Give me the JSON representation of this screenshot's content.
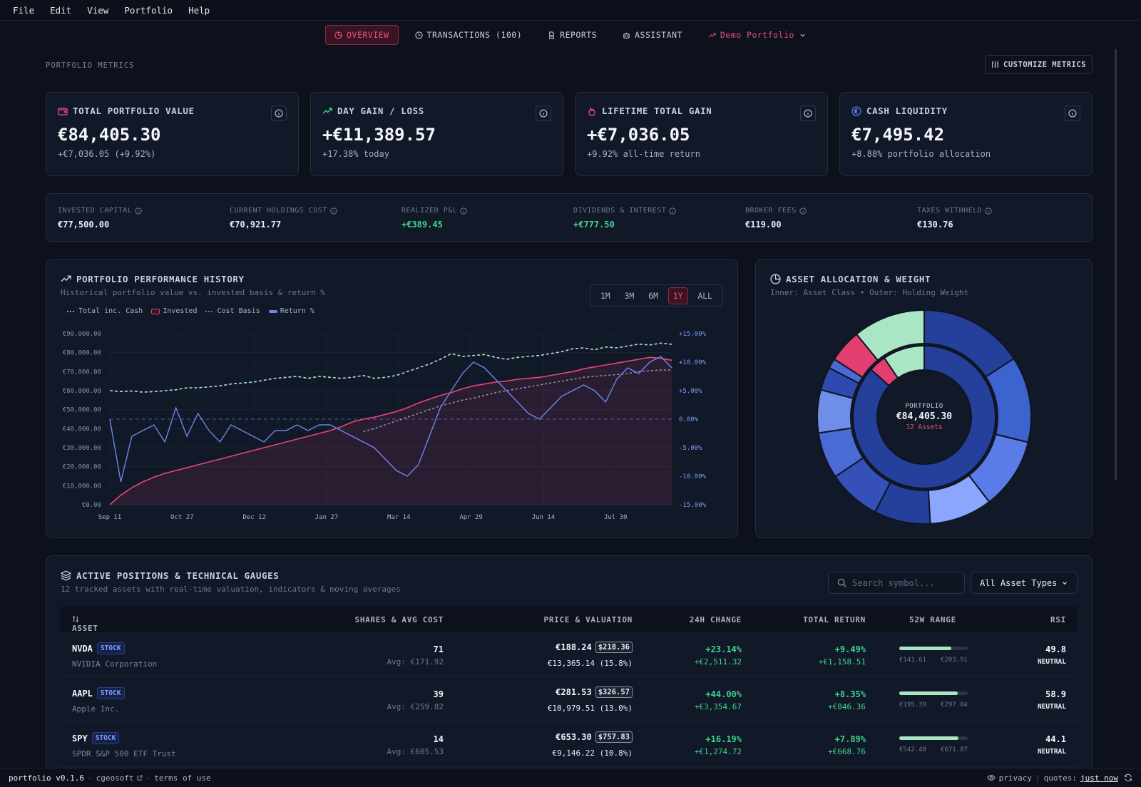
{
  "menu": [
    "File",
    "Edit",
    "View",
    "Portfolio",
    "Help"
  ],
  "tabs": {
    "overview": "OVERVIEW",
    "transactions": "TRANSACTIONS (100)",
    "reports": "REPORTS",
    "assistant": "ASSISTANT",
    "portfolio": "Demo Portfolio"
  },
  "metrics_label": "PORTFOLIO METRICS",
  "customize_label": "CUSTOMIZE METRICS",
  "cards": [
    {
      "title": "TOTAL PORTFOLIO VALUE",
      "value": "€84,405.30",
      "sub": "+€7,036.05 (+9.92%)",
      "icon": "wallet-icon"
    },
    {
      "title": "DAY GAIN / LOSS",
      "value": "+€11,389.57",
      "sub": "+17.38% today",
      "icon": "trending-up-icon"
    },
    {
      "title": "LIFETIME TOTAL GAIN",
      "value": "+€7,036.05",
      "sub": "+9.92% all-time return",
      "icon": "flame-icon"
    },
    {
      "title": "CASH LIQUIDITY",
      "value": "€7,495.42",
      "sub": "+8.88% portfolio allocation",
      "icon": "euro-coin-icon"
    }
  ],
  "strip": [
    {
      "label": "INVESTED CAPITAL",
      "value": "€77,500.00"
    },
    {
      "label": "CURRENT HOLDINGS COST",
      "value": "€70,921.77"
    },
    {
      "label": "REALIZED P&L",
      "value": "+€389.45"
    },
    {
      "label": "DIVIDENDS & INTEREST",
      "value": "+€777.50"
    },
    {
      "label": "BROKER FEES",
      "value": "€119.00"
    },
    {
      "label": "TAXES WITHHELD",
      "value": "€130.76"
    }
  ],
  "perf": {
    "title": "PORTFOLIO PERFORMANCE HISTORY",
    "subtitle": "Historical portfolio value vs. invested basis & return %",
    "ranges": [
      "1M",
      "3M",
      "6M",
      "1Y",
      "ALL"
    ],
    "active_range": "1Y",
    "legend": [
      "Total inc. Cash",
      "Invested",
      "Cost Basis",
      "Return %"
    ]
  },
  "chart_data": {
    "type": "line",
    "x_ticks": [
      "Sep 11",
      "Oct 27",
      "Dec 12",
      "Jan 27",
      "Mar 14",
      "Apr 29",
      "Jun 14",
      "Jul 30"
    ],
    "y_ticks": [
      "€90,000.00",
      "€80,000.00",
      "€70,000.00",
      "€60,000.00",
      "€50,000.00",
      "€40,000.00",
      "€30,000.00",
      "€20,000.00",
      "€10,000.00",
      "€0.00"
    ],
    "y2_ticks": [
      "+15.00%",
      "+10.00%",
      "+5.00%",
      "0.00%",
      "-5.00%",
      "-10.00%",
      "-15.00%"
    ],
    "ylim": [
      0,
      90000
    ],
    "y2lim": [
      -15,
      15
    ],
    "x": [
      0,
      1,
      2,
      3,
      4,
      5,
      6,
      7,
      8,
      9,
      10,
      11,
      12,
      13,
      14,
      15,
      16,
      17,
      18,
      19,
      20,
      21,
      22,
      23,
      24,
      25,
      26,
      27,
      28,
      29,
      30,
      31,
      32,
      33,
      34,
      35,
      36,
      37,
      38,
      39,
      40,
      41,
      42,
      43,
      44,
      45,
      46,
      47,
      48,
      49,
      50,
      51
    ],
    "series": [
      {
        "name": "Total inc. Cash",
        "color": "#a8e6c4",
        "axis": "left",
        "values": [
          60000,
          59500,
          59800,
          59200,
          59500,
          60000,
          60500,
          61500,
          61500,
          62000,
          62500,
          63500,
          64000,
          64500,
          65500,
          66500,
          67000,
          67500,
          66500,
          67500,
          67000,
          66500,
          67000,
          68000,
          66500,
          67000,
          68000,
          70000,
          72000,
          74000,
          76500,
          79500,
          78000,
          78500,
          79000,
          77500,
          76500,
          77500,
          78000,
          78500,
          79500,
          80500,
          82000,
          82500,
          81500,
          83000,
          82500,
          83500,
          84500,
          84000,
          85000,
          84400
        ]
      },
      {
        "name": "Invested",
        "color": "#e8457a",
        "axis": "left",
        "values": [
          0,
          5000,
          9000,
          12000,
          14500,
          16500,
          18000,
          19500,
          21000,
          22500,
          24000,
          25500,
          27000,
          28500,
          30000,
          31500,
          33000,
          34500,
          36000,
          37500,
          39000,
          41000,
          43500,
          45000,
          46000,
          47500,
          49000,
          51000,
          53500,
          55500,
          57500,
          59000,
          61000,
          62500,
          63500,
          64500,
          65000,
          66000,
          66500,
          67000,
          68000,
          69000,
          70000,
          71500,
          72500,
          73500,
          74500,
          75500,
          76500,
          77500,
          77000,
          76000
        ]
      },
      {
        "name": "Cost Basis",
        "color": "#8a93a3",
        "axis": "left",
        "values": [
          null,
          null,
          null,
          null,
          null,
          null,
          null,
          null,
          null,
          null,
          null,
          null,
          null,
          null,
          null,
          null,
          null,
          null,
          null,
          null,
          null,
          null,
          null,
          38500,
          40000,
          42000,
          44000,
          46000,
          48000,
          50000,
          52000,
          53500,
          55000,
          56000,
          57500,
          59000,
          60000,
          61000,
          62000,
          63000,
          64000,
          65000,
          66000,
          67000,
          67500,
          68000,
          68500,
          69000,
          70000,
          70500,
          70900,
          70900
        ]
      },
      {
        "name": "Return %",
        "color": "#6b86e8",
        "axis": "right",
        "values": [
          0,
          -11,
          -3,
          -2,
          -1,
          -4,
          2,
          -3,
          1,
          -2,
          -4,
          -1,
          -2,
          -3,
          -4,
          -2,
          -2,
          -1,
          -2,
          -1,
          -1,
          -2,
          -3,
          -4,
          -5,
          -7,
          -9,
          -10,
          -8,
          -3,
          2,
          5,
          8,
          10,
          9,
          7,
          5,
          3,
          1,
          0,
          2,
          4,
          5,
          6,
          5,
          3,
          7,
          9,
          8,
          10,
          11,
          9
        ]
      }
    ]
  },
  "alloc": {
    "title": "ASSET ALLOCATION & WEIGHT",
    "subtitle": "Inner: Asset Class • Outer: Holding Weight",
    "center_label": "PORTFOLIO",
    "center_value": "€84,405.30",
    "center_count": "12 Assets",
    "inner": [
      {
        "value": 81.3,
        "color": "#24409a"
      },
      {
        "value": 3.7,
        "color": "#e23f70"
      },
      {
        "value": 8.88,
        "color": "#a8e6c4"
      }
    ],
    "outer": [
      {
        "value": 15.8,
        "color": "#24409a"
      },
      {
        "value": 13.0,
        "color": "#3d63cf"
      },
      {
        "value": 10.8,
        "color": "#5b7ce8"
      },
      {
        "value": 9.5,
        "color": "#8aa6ff"
      },
      {
        "value": 8.5,
        "color": "#24409a"
      },
      {
        "value": 8,
        "color": "#3550b8"
      },
      {
        "value": 7,
        "color": "#4a6ad7"
      },
      {
        "value": 6.5,
        "color": "#6f8ee8"
      },
      {
        "value": 3.5,
        "color": "#2e4aae"
      },
      {
        "value": 1.5,
        "color": "#4a6ad7"
      },
      {
        "value": 5,
        "color": "#e23f70"
      },
      {
        "value": 10.9,
        "color": "#a8e6c4"
      }
    ]
  },
  "positions": {
    "title": "ACTIVE POSITIONS & TECHNICAL GAUGES",
    "subtitle": "12 tracked assets with real-time valuation, indicators & moving averages",
    "search_placeholder": "Search symbol...",
    "filter": "All Asset Types",
    "headers": {
      "asset": "ASSET",
      "shares": "SHARES & AVG COST",
      "price": "PRICE & VALUATION",
      "change": "24H CHANGE",
      "total": "TOTAL RETURN",
      "range": "52W RANGE",
      "rsi": "RSI"
    },
    "rows": [
      {
        "sym": "NVDA",
        "type": "STOCK",
        "name": "NVIDIA Corporation",
        "shares": "71",
        "avg": "Avg: €171.92",
        "price": "€188.24",
        "target": "$218.36",
        "valuation": "€13,365.14 (15.8%)",
        "chg": "+23.14%",
        "chg_abs": "+€2,511.32",
        "ret": "+9.49%",
        "ret_abs": "+€1,158.51",
        "low": "€141.61",
        "high": "€203.91",
        "pos": 0.76,
        "rsi": "49.8",
        "rsi_label": "NEUTRAL"
      },
      {
        "sym": "AAPL",
        "type": "STOCK",
        "name": "Apple Inc.",
        "shares": "39",
        "avg": "Avg: €259.82",
        "price": "€281.53",
        "target": "$326.57",
        "valuation": "€10,979.51 (13.0%)",
        "chg": "+44.00%",
        "chg_abs": "+€3,354.67",
        "ret": "+8.35%",
        "ret_abs": "+€846.36",
        "low": "€195.39",
        "high": "€297.04",
        "pos": 0.85,
        "rsi": "58.9",
        "rsi_label": "NEUTRAL"
      },
      {
        "sym": "SPY",
        "type": "STOCK",
        "name": "SPDR S&P 500 ETF Trust",
        "shares": "14",
        "avg": "Avg: €605.53",
        "price": "€653.30",
        "target": "$757.83",
        "valuation": "€9,146.22 (10.8%)",
        "chg": "+16.19%",
        "chg_abs": "+€1,274.72",
        "ret": "+7.89%",
        "ret_abs": "+€668.76",
        "low": "€542.48",
        "high": "€671.87",
        "pos": 0.86,
        "rsi": "44.1",
        "rsi_label": "NEUTRAL"
      }
    ]
  },
  "footer": {
    "version": "portfolio v0.1.6",
    "author": "cgeosoft",
    "terms": "terms of use",
    "privacy": "privacy",
    "quotes_label": "quotes:",
    "quotes_value": "just now"
  }
}
